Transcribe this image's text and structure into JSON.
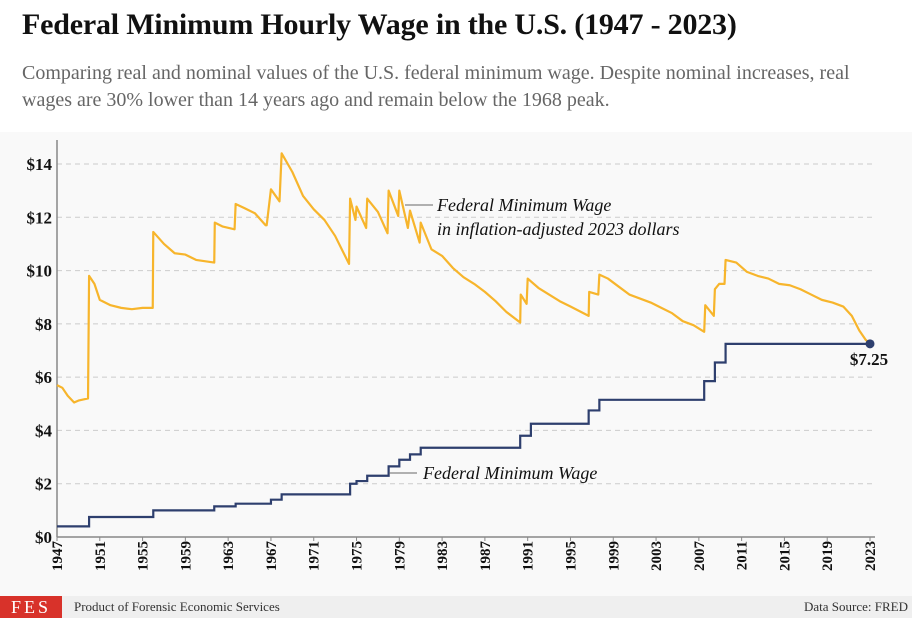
{
  "title": "Federal Minimum Hourly Wage in the U.S. (1947 - 2023)",
  "subtitle": "Comparing real and nominal values of the U.S. federal minimum wage. Despite nominal increases, real wages are 30% lower than 14 years ago and remain below the 1968 peak.",
  "footer": {
    "logo": "FES",
    "credit": "Product of Forensic Economic Services",
    "source": "Data Source: FRED"
  },
  "colors": {
    "real": "#f7b52c",
    "nominal": "#2e3f6e",
    "grid": "#cccccc"
  },
  "chart_data": {
    "type": "line",
    "title": "Federal Minimum Hourly Wage in the U.S. (1947 - 2023)",
    "xlim": [
      1947,
      2023
    ],
    "ylim": [
      0,
      14.6
    ],
    "grid": true,
    "yticks": [
      0,
      2,
      4,
      6,
      8,
      10,
      12,
      14
    ],
    "ytick_labels": [
      "$0",
      "$2",
      "$4",
      "$6",
      "$8",
      "$10",
      "$12",
      "$14"
    ],
    "xticks": [
      "1947",
      "1951",
      "1955",
      "1959",
      "1963",
      "1967",
      "1971",
      "1975",
      "1979",
      "1983",
      "1987",
      "1991",
      "1995",
      "1999",
      "2003",
      "2007",
      "2011",
      "2015",
      "2019",
      "2023"
    ],
    "series": [
      {
        "name": "Federal Minimum Wage in inflation-adjusted 2023 dollars",
        "label_lines": [
          "Federal Minimum Wage",
          "in inflation-adjusted 2023 dollars"
        ],
        "points": [
          [
            1947,
            5.7
          ],
          [
            1947.5,
            5.6
          ],
          [
            1948,
            5.3
          ],
          [
            1948.6,
            5.05
          ],
          [
            1949,
            5.12
          ],
          [
            1949.9,
            5.2
          ],
          [
            1950,
            9.8
          ],
          [
            1950.5,
            9.5
          ],
          [
            1951,
            8.9
          ],
          [
            1952,
            8.7
          ],
          [
            1953,
            8.6
          ],
          [
            1954,
            8.55
          ],
          [
            1955,
            8.6
          ],
          [
            1955.95,
            8.6
          ],
          [
            1956,
            11.45
          ],
          [
            1957,
            11.0
          ],
          [
            1958,
            10.65
          ],
          [
            1959,
            10.6
          ],
          [
            1960,
            10.4
          ],
          [
            1961.7,
            10.3
          ],
          [
            1961.75,
            11.8
          ],
          [
            1962.5,
            11.65
          ],
          [
            1963.6,
            11.55
          ],
          [
            1963.7,
            12.5
          ],
          [
            1964.5,
            12.35
          ],
          [
            1965.5,
            12.15
          ],
          [
            1966.5,
            11.7
          ],
          [
            1966.6,
            11.7
          ],
          [
            1967,
            13.05
          ],
          [
            1967.8,
            12.6
          ],
          [
            1968,
            14.4
          ],
          [
            1969,
            13.7
          ],
          [
            1970,
            12.8
          ],
          [
            1971,
            12.3
          ],
          [
            1972,
            11.9
          ],
          [
            1973,
            11.3
          ],
          [
            1974.3,
            10.25
          ],
          [
            1974.4,
            12.7
          ],
          [
            1974.9,
            11.9
          ],
          [
            1975,
            12.4
          ],
          [
            1975.9,
            11.6
          ],
          [
            1976,
            12.7
          ],
          [
            1977,
            12.2
          ],
          [
            1977.9,
            11.4
          ],
          [
            1978,
            13.0
          ],
          [
            1978.9,
            12.05
          ],
          [
            1979,
            13.0
          ],
          [
            1979.8,
            11.6
          ],
          [
            1980,
            12.25
          ],
          [
            1980.9,
            11.05
          ],
          [
            1981,
            11.8
          ],
          [
            1982,
            10.8
          ],
          [
            1983,
            10.55
          ],
          [
            1984,
            10.1
          ],
          [
            1985,
            9.75
          ],
          [
            1986,
            9.5
          ],
          [
            1987,
            9.2
          ],
          [
            1988,
            8.85
          ],
          [
            1989,
            8.45
          ],
          [
            1990.3,
            8.05
          ],
          [
            1990.35,
            9.1
          ],
          [
            1990.9,
            8.75
          ],
          [
            1991,
            9.7
          ],
          [
            1992,
            9.35
          ],
          [
            1993,
            9.1
          ],
          [
            1994,
            8.85
          ],
          [
            1995,
            8.65
          ],
          [
            1996.7,
            8.3
          ],
          [
            1996.75,
            9.2
          ],
          [
            1997.6,
            9.1
          ],
          [
            1997.7,
            9.85
          ],
          [
            1998.5,
            9.7
          ],
          [
            1999.5,
            9.4
          ],
          [
            2000.5,
            9.1
          ],
          [
            2001.5,
            8.95
          ],
          [
            2002.5,
            8.8
          ],
          [
            2003.5,
            8.6
          ],
          [
            2004.5,
            8.4
          ],
          [
            2005.5,
            8.1
          ],
          [
            2006.5,
            7.95
          ],
          [
            2007.5,
            7.7
          ],
          [
            2007.6,
            8.7
          ],
          [
            2008.4,
            8.3
          ],
          [
            2008.5,
            9.3
          ],
          [
            2008.9,
            9.5
          ],
          [
            2009.4,
            9.5
          ],
          [
            2009.5,
            10.4
          ],
          [
            2010.5,
            10.3
          ],
          [
            2011.5,
            9.95
          ],
          [
            2012.5,
            9.8
          ],
          [
            2013.5,
            9.7
          ],
          [
            2014.5,
            9.5
          ],
          [
            2015.5,
            9.45
          ],
          [
            2016.5,
            9.3
          ],
          [
            2017.5,
            9.1
          ],
          [
            2018.5,
            8.9
          ],
          [
            2019.5,
            8.8
          ],
          [
            2020.5,
            8.65
          ],
          [
            2021.3,
            8.3
          ],
          [
            2022,
            7.75
          ],
          [
            2022.6,
            7.4
          ],
          [
            2023,
            7.25
          ]
        ]
      },
      {
        "name": "Federal Minimum Wage",
        "label_lines": [
          "Federal Minimum Wage"
        ],
        "step": true,
        "points": [
          [
            1947,
            0.4
          ],
          [
            1950,
            0.75
          ],
          [
            1956,
            1.0
          ],
          [
            1961.7,
            1.15
          ],
          [
            1963.7,
            1.25
          ],
          [
            1967,
            1.4
          ],
          [
            1968,
            1.6
          ],
          [
            1974.4,
            2.0
          ],
          [
            1975,
            2.1
          ],
          [
            1976,
            2.3
          ],
          [
            1978,
            2.65
          ],
          [
            1979,
            2.9
          ],
          [
            1980,
            3.1
          ],
          [
            1981,
            3.35
          ],
          [
            1990.3,
            3.8
          ],
          [
            1991.3,
            4.25
          ],
          [
            1996.7,
            4.75
          ],
          [
            1997.7,
            5.15
          ],
          [
            2007.5,
            5.85
          ],
          [
            2008.5,
            6.55
          ],
          [
            2009.5,
            7.25
          ],
          [
            2023,
            7.25
          ]
        ]
      }
    ],
    "annotations": [
      {
        "text": "$7.25",
        "x": 2023,
        "y": 7.25
      }
    ]
  }
}
